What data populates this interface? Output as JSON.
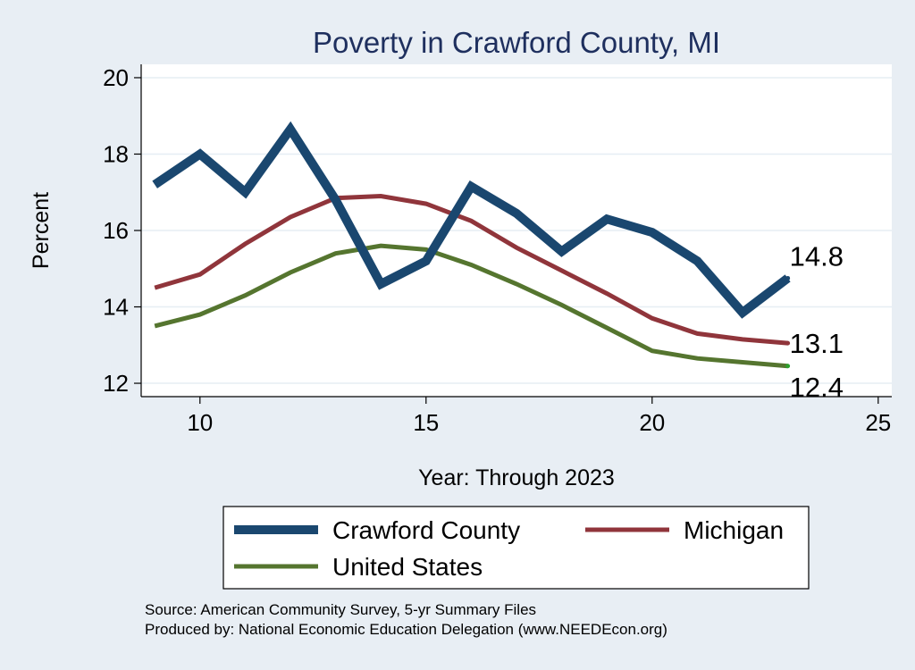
{
  "chart_data": {
    "type": "line",
    "title": "Poverty in Crawford County, MI",
    "xlabel": "Year: Through 2023",
    "ylabel": "Percent",
    "xlim": [
      8.7,
      25.3
    ],
    "ylim": [
      11.65,
      20.35
    ],
    "x_ticks": [
      10,
      15,
      20,
      25
    ],
    "y_ticks": [
      12,
      14,
      16,
      18,
      20
    ],
    "grid": "horizontal",
    "legend_position": "bottom",
    "series": [
      {
        "name": "Crawford County",
        "color": "#1a476f",
        "x": [
          9,
          10,
          11,
          12,
          13,
          14,
          15,
          16,
          17,
          18,
          19,
          20,
          21,
          22,
          23
        ],
        "values": [
          17.2,
          18.0,
          17.0,
          18.65,
          16.8,
          14.6,
          15.2,
          17.15,
          16.45,
          15.45,
          16.3,
          15.95,
          15.2,
          13.85,
          14.75
        ],
        "end_label": "14.8"
      },
      {
        "name": "Michigan",
        "color": "#90353b",
        "x": [
          9,
          10,
          11,
          12,
          13,
          14,
          15,
          16,
          17,
          18,
          19,
          20,
          21,
          22,
          23
        ],
        "values": [
          14.5,
          14.85,
          15.65,
          16.35,
          16.85,
          16.9,
          16.7,
          16.25,
          15.55,
          14.95,
          14.35,
          13.7,
          13.3,
          13.15,
          13.05
        ],
        "end_label": "13.1"
      },
      {
        "name": "United States",
        "color": "#55752f",
        "x": [
          9,
          10,
          11,
          12,
          13,
          14,
          15,
          16,
          17,
          18,
          19,
          20,
          21,
          22,
          23
        ],
        "values": [
          13.5,
          13.8,
          14.3,
          14.9,
          15.4,
          15.6,
          15.5,
          15.1,
          14.6,
          14.05,
          13.45,
          12.85,
          12.65,
          12.55,
          12.45
        ],
        "end_label": "12.4"
      }
    ]
  },
  "footer": {
    "source": "Source: American Community Survey, 5-yr Summary Files",
    "produced_by": "Produced by: National Economic Education Delegation (www.NEEDEcon.org)"
  }
}
